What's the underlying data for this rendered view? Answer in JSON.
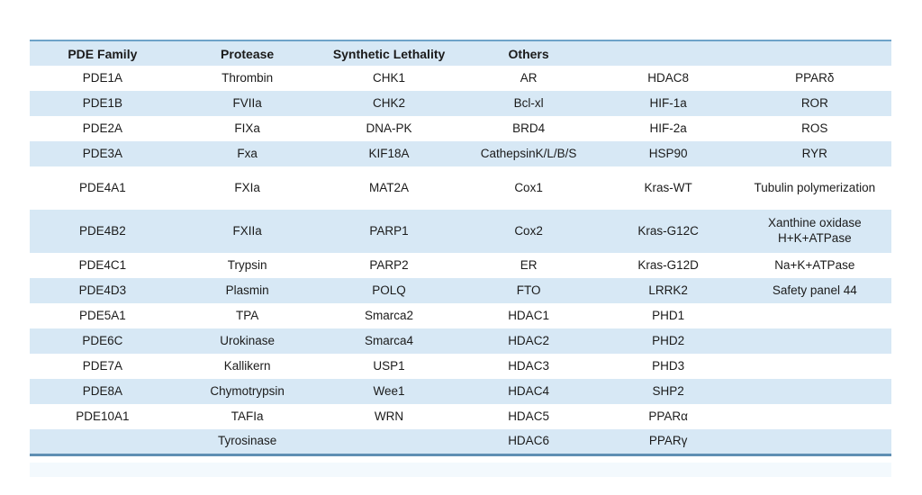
{
  "table": {
    "headers": [
      "PDE Family",
      "Protease",
      "Synthetic Lethality",
      "Others",
      "",
      ""
    ],
    "header_names": [
      "pde-family",
      "protease",
      "synthetic-lethality",
      "others",
      "others-2",
      "others-3"
    ],
    "rows": [
      {
        "shaded": false,
        "tall": false,
        "cells": [
          "PDE1A",
          "Thrombin",
          "CHK1",
          "AR",
          "HDAC8",
          "PPARδ"
        ]
      },
      {
        "shaded": true,
        "tall": false,
        "cells": [
          "PDE1B",
          "FVIIa",
          "CHK2",
          "Bcl-xl",
          "HIF-1a",
          "ROR"
        ]
      },
      {
        "shaded": false,
        "tall": false,
        "cells": [
          "PDE2A",
          "FIXa",
          "DNA-PK",
          "BRD4",
          "HIF-2a",
          "ROS"
        ]
      },
      {
        "shaded": true,
        "tall": false,
        "cells": [
          "PDE3A",
          "Fxa",
          "KIF18A",
          "CathepsinK/L/B/S",
          "HSP90",
          "RYR"
        ]
      },
      {
        "shaded": false,
        "tall": true,
        "cells": [
          "PDE4A1",
          "FXIa",
          "MAT2A",
          "Cox1",
          "Kras-WT",
          "Tubulin polymerization"
        ]
      },
      {
        "shaded": true,
        "tall": true,
        "cells": [
          "PDE4B2",
          "FXIIa",
          "PARP1",
          "Cox2",
          "Kras-G12C",
          "Xanthine oxidase\nH+K+ATPase"
        ]
      },
      {
        "shaded": false,
        "tall": false,
        "cells": [
          "PDE4C1",
          "Trypsin",
          "PARP2",
          "ER",
          "Kras-G12D",
          "Na+K+ATPase"
        ]
      },
      {
        "shaded": true,
        "tall": false,
        "cells": [
          "PDE4D3",
          "Plasmin",
          "POLQ",
          "FTO",
          "LRRK2",
          "Safety panel 44"
        ]
      },
      {
        "shaded": false,
        "tall": false,
        "cells": [
          "PDE5A1",
          "TPA",
          "Smarca2",
          "HDAC1",
          "PHD1",
          ""
        ]
      },
      {
        "shaded": true,
        "tall": false,
        "cells": [
          "PDE6C",
          "Urokinase",
          "Smarca4",
          "HDAC2",
          "PHD2",
          ""
        ]
      },
      {
        "shaded": false,
        "tall": false,
        "cells": [
          "PDE7A",
          "Kallikern",
          "USP1",
          "HDAC3",
          "PHD3",
          ""
        ]
      },
      {
        "shaded": true,
        "tall": false,
        "cells": [
          "PDE8A",
          "Chymotrypsin",
          "Wee1",
          "HDAC4",
          "SHP2",
          ""
        ]
      },
      {
        "shaded": false,
        "tall": false,
        "cells": [
          "PDE10A1",
          "TAFIa",
          "WRN",
          "HDAC5",
          "PPARα",
          ""
        ]
      },
      {
        "shaded": true,
        "tall": false,
        "cells": [
          "",
          "Tyrosinase",
          "",
          "HDAC6",
          "PPARγ",
          ""
        ]
      }
    ],
    "colors": {
      "row_shade": "#d7e8f5",
      "header_bg": "#d7e8f5",
      "top_border": "#6ea3c9",
      "bottom_border": "#5f8fb3",
      "text": "#1b1b1b",
      "footer_strip": "#f3f9fd"
    }
  }
}
